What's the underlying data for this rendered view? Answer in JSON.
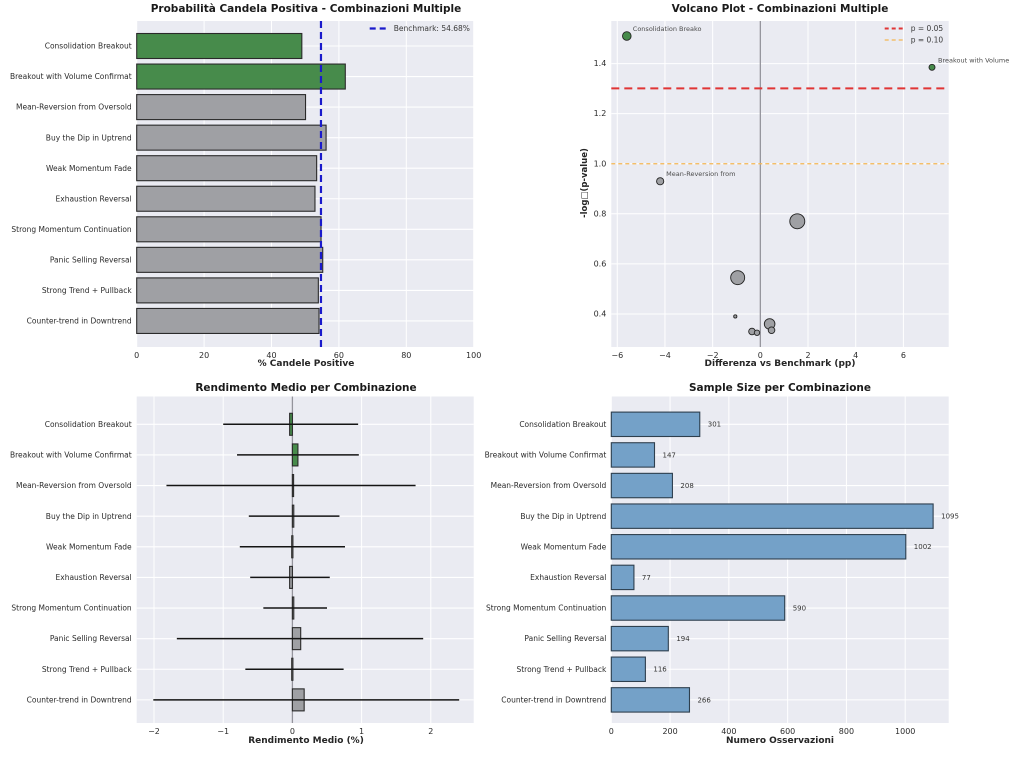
{
  "figure": {
    "background": "#ffffff",
    "axes_background": "#eaebf2",
    "grid_color": "#ffffff"
  },
  "colors": {
    "green": "#478b4b",
    "gray": "#9fa0a4",
    "blue": "#74a1c8",
    "bar_edge": "#2a2a2a",
    "blue_edge": "#2e3f4e",
    "benchmark_blue": "#1a1acb",
    "threshold_red": "#e03535",
    "threshold_orange": "#f3b653",
    "zero_line": "#94949c",
    "error_bar": "#141414"
  },
  "categories": [
    "Consolidation Breakout",
    "Breakout with Volume Confirmat",
    "Mean-Reversion from Oversold",
    "Buy the Dip in Uptrend",
    "Weak Momentum Fade",
    "Exhaustion Reversal",
    "Strong Momentum Continuation",
    "Panic Selling Reversal",
    "Strong Trend + Pullback",
    "Counter-trend in Downtrend"
  ],
  "chart_data": [
    {
      "id": "probability",
      "type": "bar",
      "orientation": "horizontal",
      "title": "Probabilità Candela Positiva - Combinazioni Multiple",
      "xlabel": "% Candele Positive",
      "categories": [
        "Consolidation Breakout",
        "Breakout with Volume Confirmat",
        "Mean-Reversion from Oversold",
        "Buy the Dip in Uptrend",
        "Weak Momentum Fade",
        "Exhaustion Reversal",
        "Strong Momentum Continuation",
        "Panic Selling Reversal",
        "Strong Trend + Pullback",
        "Counter-trend in Downtrend"
      ],
      "values": [
        49.0,
        61.9,
        50.1,
        56.2,
        53.4,
        52.9,
        54.7,
        55.2,
        53.9,
        54.1
      ],
      "bar_colors": [
        "green",
        "green",
        "gray",
        "gray",
        "gray",
        "gray",
        "gray",
        "gray",
        "gray",
        "gray"
      ],
      "benchmark": 54.68,
      "legend": [
        {
          "label": "Benchmark: 54.68%",
          "color": "benchmark_blue",
          "dash": "7 4",
          "lw": 2.2
        }
      ],
      "xlim": [
        0,
        100
      ],
      "xticks": [
        "0",
        "20",
        "40",
        "60",
        "80",
        "100"
      ],
      "grid": true
    },
    {
      "id": "volcano",
      "type": "scatter",
      "title": "Volcano Plot - Combinazioni Multiple",
      "xlabel": "Differenza vs Benchmark (pp)",
      "ylabel": "-log□(p-value)",
      "points": [
        {
          "x": -5.6,
          "y": 1.51,
          "r": 4.3,
          "color": "green",
          "label": "Consolidation Breako"
        },
        {
          "x": 7.2,
          "y": 1.385,
          "r": 3.0,
          "color": "green",
          "label": "Breakout with Volume"
        },
        {
          "x": -4.2,
          "y": 0.93,
          "r": 3.6,
          "color": "gray",
          "label": "Mean-Reversion from"
        },
        {
          "x": 1.55,
          "y": 0.77,
          "r": 7.5,
          "color": "gray",
          "label": ""
        },
        {
          "x": -0.95,
          "y": 0.545,
          "r": 7.0,
          "color": "gray",
          "label": ""
        },
        {
          "x": -1.05,
          "y": 0.39,
          "r": 1.6,
          "color": "gray",
          "label": ""
        },
        {
          "x": 0.39,
          "y": 0.36,
          "r": 5.3,
          "color": "gray",
          "label": ""
        },
        {
          "x": 0.47,
          "y": 0.335,
          "r": 3.3,
          "color": "gray",
          "label": ""
        },
        {
          "x": -0.35,
          "y": 0.33,
          "r": 3.3,
          "color": "gray",
          "label": ""
        },
        {
          "x": -0.14,
          "y": 0.325,
          "r": 2.7,
          "color": "gray",
          "label": ""
        }
      ],
      "hlines": [
        {
          "y": 1.301,
          "label": "p = 0.05",
          "color": "threshold_red",
          "dash": "8 5",
          "lw": 2.0
        },
        {
          "y": 1.0,
          "label": "p = 0.10",
          "color": "threshold_orange",
          "dash": "4 3",
          "lw": 1.3
        }
      ],
      "zero_vline": 0,
      "xlim": [
        -6.25,
        7.9
      ],
      "ylim": [
        0.268,
        1.57
      ],
      "xticks": [
        "-6",
        "-4",
        "-2",
        "0",
        "2",
        "4",
        "6"
      ],
      "yticks": [
        "0.4",
        "0.6",
        "0.8",
        "1.0",
        "1.2",
        "1.4"
      ],
      "grid": true
    },
    {
      "id": "returns",
      "type": "bar",
      "orientation": "horizontal",
      "title": "Rendimento Medio per Combinazione",
      "xlabel": "Rendimento Medio (%)",
      "categories": [
        "Consolidation Breakout",
        "Breakout with Volume Confirmat",
        "Mean-Reversion from Oversold",
        "Buy the Dip in Uptrend",
        "Weak Momentum Fade",
        "Exhaustion Reversal",
        "Strong Momentum Continuation",
        "Panic Selling Reversal",
        "Strong Trend + Pullback",
        "Counter-trend in Downtrend"
      ],
      "values": [
        -0.04,
        0.08,
        0.01,
        0.02,
        -0.01,
        -0.04,
        0.02,
        0.12,
        -0.01,
        0.17
      ],
      "error_low": [
        -1.0,
        -0.8,
        -1.82,
        -0.63,
        -0.76,
        -0.61,
        -0.42,
        -1.67,
        -0.68,
        -2.01
      ],
      "error_high": [
        0.95,
        0.96,
        1.78,
        0.68,
        0.76,
        0.54,
        0.5,
        1.89,
        0.74,
        2.41
      ],
      "bar_colors": [
        "green",
        "green",
        "gray",
        "gray",
        "gray",
        "gray",
        "gray",
        "gray",
        "gray",
        "gray"
      ],
      "zero_vline": 0,
      "xlim": [
        -2.25,
        2.62
      ],
      "xticks": [
        "-2",
        "-1",
        "0",
        "1",
        "2"
      ],
      "grid": true
    },
    {
      "id": "sample_size",
      "type": "bar",
      "orientation": "horizontal",
      "title": "Sample Size per Combinazione",
      "xlabel": "Numero Osservazioni",
      "categories": [
        "Consolidation Breakout",
        "Breakout with Volume Confirmat",
        "Mean-Reversion from Oversold",
        "Buy the Dip in Uptrend",
        "Weak Momentum Fade",
        "Exhaustion Reversal",
        "Strong Momentum Continuation",
        "Panic Selling Reversal",
        "Strong Trend + Pullback",
        "Counter-trend in Downtrend"
      ],
      "values": [
        301,
        147,
        208,
        1095,
        1002,
        77,
        590,
        194,
        116,
        266
      ],
      "value_labels": [
        "301",
        "147",
        "208",
        "1095",
        "1002",
        "77",
        "590",
        "194",
        "116",
        "266"
      ],
      "bar_colors": [
        "blue",
        "blue",
        "blue",
        "blue",
        "blue",
        "blue",
        "blue",
        "blue",
        "blue",
        "blue"
      ],
      "xlim": [
        0,
        1148
      ],
      "xticks": [
        "0",
        "200",
        "400",
        "600",
        "800",
        "1000"
      ],
      "grid": true
    }
  ]
}
